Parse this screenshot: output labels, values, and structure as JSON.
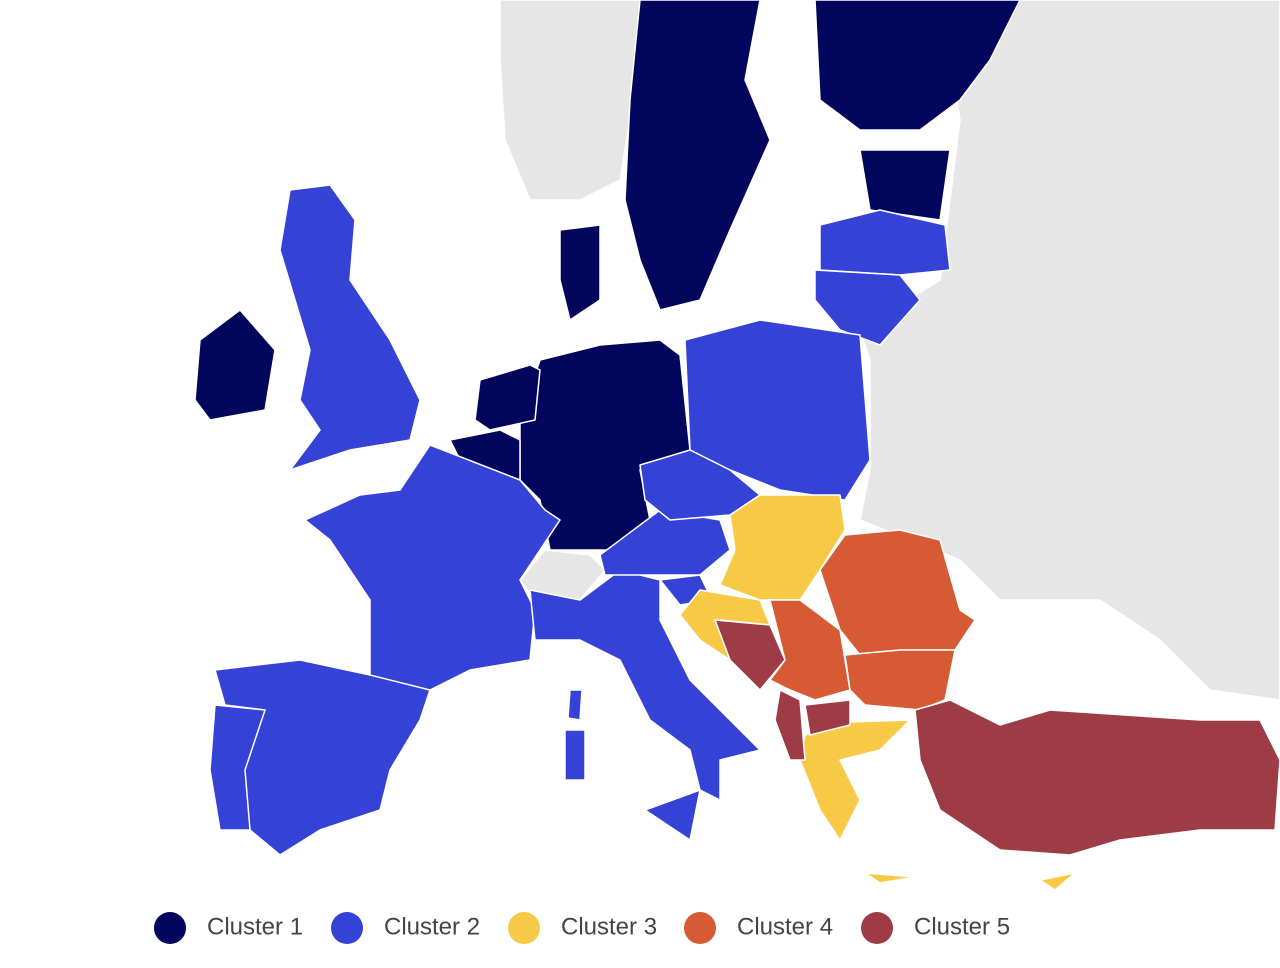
{
  "legend": [
    {
      "label": "Cluster 1",
      "color": "#02065c"
    },
    {
      "label": "Cluster 2",
      "color": "#3542d6"
    },
    {
      "label": "Cluster 3",
      "color": "#f8c945"
    },
    {
      "label": "Cluster 4",
      "color": "#d65a33"
    },
    {
      "label": "Cluster 5",
      "color": "#9e3c46"
    }
  ]
}
